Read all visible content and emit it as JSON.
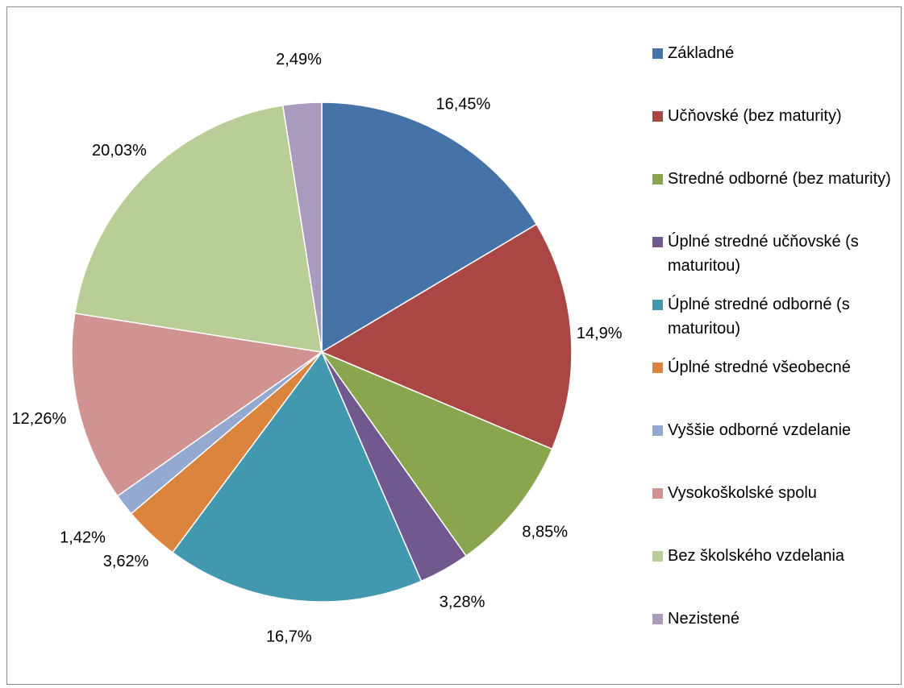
{
  "chart_data": {
    "type": "pie",
    "categories": [
      "Základné",
      "Učňovské (bez maturity)",
      "Stredné odborné (bez maturity)",
      "Úplné stredné učňovské (s maturitou)",
      "Úplné stredné odborné (s maturitou)",
      "Úplné stredné všeobecné",
      "Vyššie odborné vzdelanie",
      "Vysokoškolské spolu",
      "Bez školského vzdelania",
      "Nezistené"
    ],
    "values": [
      16.45,
      14.9,
      8.85,
      3.28,
      16.7,
      3.62,
      1.42,
      12.26,
      20.03,
      2.49
    ],
    "data_labels": [
      "16,45%",
      "14,9%",
      "8,85%",
      "3,28%",
      "16,7%",
      "3,62%",
      "1,42%",
      "12,26%",
      "20,03%",
      "2,49%"
    ],
    "colors": [
      "#4572a7",
      "#aa4643",
      "#89a54e",
      "#71588f",
      "#4198af",
      "#db843d",
      "#93a9cf",
      "#d19392",
      "#b9cd96",
      "#a99bbd"
    ],
    "legend_position": "right",
    "title": ""
  }
}
